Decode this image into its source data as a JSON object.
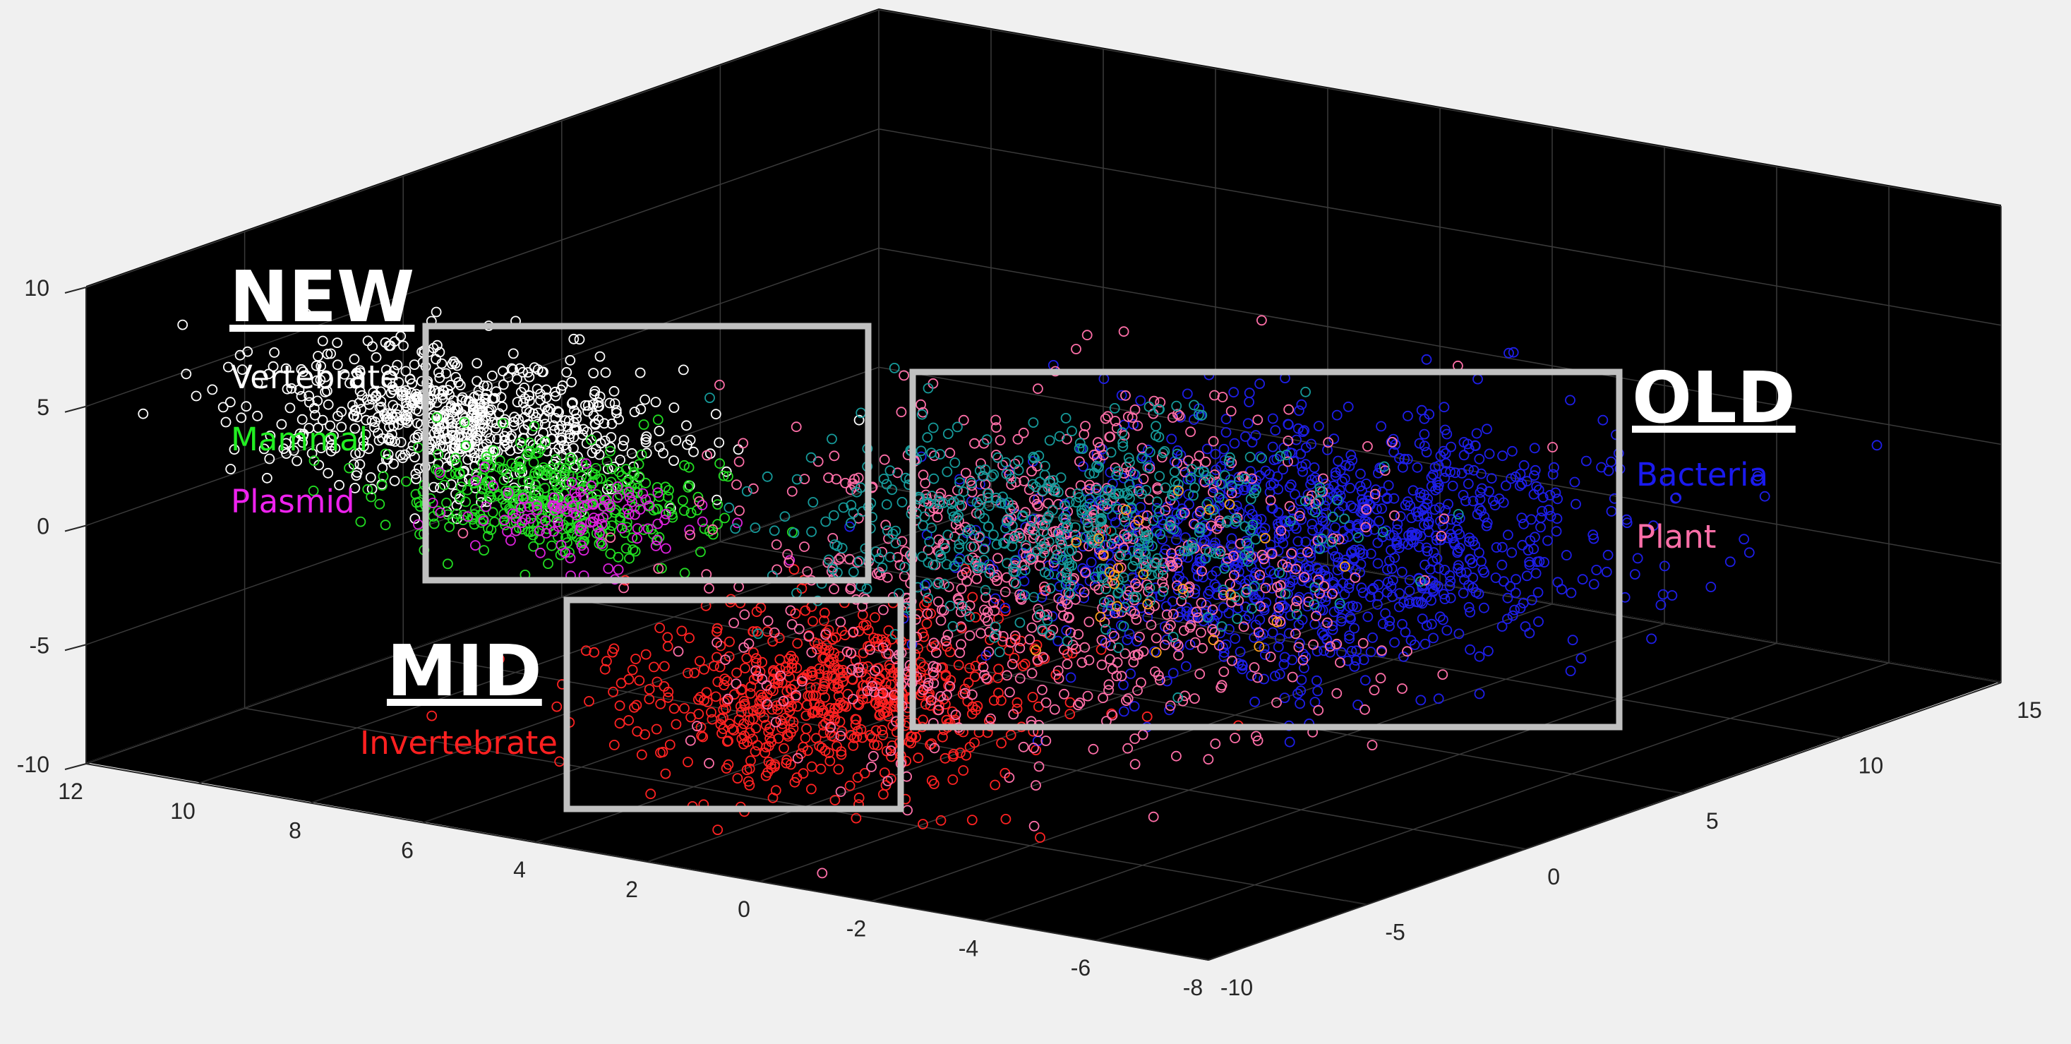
{
  "chart_data": {
    "type": "scatter",
    "dimensions": 3,
    "title": "",
    "xlabel": "",
    "ylabel": "",
    "zlabel": "",
    "grid": true,
    "background": "#000000",
    "xlim": [
      -8,
      12
    ],
    "ylim": [
      -10,
      15
    ],
    "zlim": [
      -10,
      10
    ],
    "x_ticks": [
      "-8",
      "-6",
      "-4",
      "-2",
      "0",
      "2",
      "4",
      "6",
      "8",
      "10",
      "12"
    ],
    "y_ticks": [
      "-10",
      "-5",
      "0",
      "5",
      "10",
      "15"
    ],
    "z_ticks": [
      "-10",
      "-5",
      "0",
      "5",
      "10"
    ],
    "series": [
      {
        "color": "#ffffff",
        "cluster": {
          "x": [
            4.5,
            11
          ],
          "y": [
            -8,
            -3
          ],
          "z": [
            1.5,
            6.5
          ]
        },
        "count": 700
      },
      {
        "color": "#22dd22",
        "cluster": {
          "x": [
            4,
            9
          ],
          "y": [
            -7,
            -3
          ],
          "z": [
            -1,
            3
          ]
        },
        "count": 380
      },
      {
        "color": "#dd22dd",
        "cluster": {
          "x": [
            4,
            8
          ],
          "y": [
            -7,
            -3
          ],
          "z": [
            -1,
            2
          ]
        },
        "count": 110
      },
      {
        "color": "#ff2222",
        "cluster": {
          "x": [
            -1,
            5
          ],
          "y": [
            -8,
            0
          ],
          "z": [
            -9,
            -3
          ]
        },
        "count": 650
      },
      {
        "color": "#1e1ee8",
        "cluster": {
          "x": [
            -6,
            2
          ],
          "y": [
            -2,
            10
          ],
          "z": [
            -6,
            3
          ]
        },
        "count": 1100
      },
      {
        "color": "#ff6fa8",
        "cluster": {
          "x": [
            -4,
            4
          ],
          "y": [
            -8,
            6
          ],
          "z": [
            -8,
            5
          ]
        },
        "count": 750
      },
      {
        "color": "#169a9a",
        "cluster": {
          "x": [
            -3,
            5
          ],
          "y": [
            -4,
            6
          ],
          "z": [
            -4,
            3
          ]
        },
        "count": 500
      },
      {
        "color": "#ffa020",
        "cluster": {
          "x": [
            -3,
            2
          ],
          "y": [
            -2,
            6
          ],
          "z": [
            -5,
            0
          ]
        },
        "count": 25
      }
    ]
  },
  "annotations": {
    "new": {
      "heading": "NEW",
      "items": [
        {
          "label": "Vertebrate",
          "color": "#ffffff"
        },
        {
          "label": "Mammal",
          "color": "#22ee22"
        },
        {
          "label": "Plasmid",
          "color": "#ee22ee"
        }
      ]
    },
    "mid": {
      "heading": "MID",
      "items": [
        {
          "label": "Invertebrate",
          "color": "#ff2020"
        }
      ]
    },
    "old": {
      "heading": "OLD",
      "items": [
        {
          "label": "Bacteria",
          "color": "#1a1aee"
        },
        {
          "label": "Plant",
          "color": "#ff6fa8"
        }
      ]
    },
    "box_color": "#c0c0c0"
  }
}
